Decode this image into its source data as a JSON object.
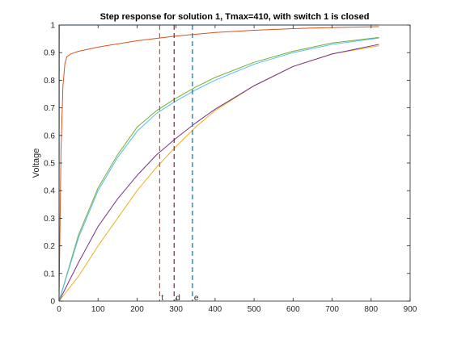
{
  "chart_data": {
    "type": "line",
    "title": "Step response for solution 1, Tmax=410, with switch 1 is closed",
    "xlabel": "",
    "ylabel": "Voltage",
    "xlim": [
      0,
      900
    ],
    "ylim": [
      0,
      1
    ],
    "xticks": [
      0,
      100,
      200,
      300,
      400,
      500,
      600,
      700,
      800,
      900
    ],
    "yticks": [
      0,
      0.1,
      0.2,
      0.3,
      0.4,
      0.5,
      0.6,
      0.7,
      0.8,
      0.9,
      1
    ],
    "grid": false,
    "series": [
      {
        "color": "#0072BD",
        "x": [
          0,
          0.5,
          820
        ],
        "y": [
          0,
          1,
          1
        ]
      },
      {
        "color": "#D95319",
        "x": [
          0,
          5,
          10,
          15,
          20,
          25,
          30,
          50,
          100,
          200,
          300,
          400,
          500,
          600,
          700,
          820
        ],
        "y": [
          0,
          0.55,
          0.78,
          0.86,
          0.885,
          0.89,
          0.895,
          0.905,
          0.92,
          0.943,
          0.96,
          0.973,
          0.981,
          0.987,
          0.991,
          0.994
        ]
      },
      {
        "color": "#EDB120",
        "x": [
          0,
          50,
          100,
          150,
          200,
          250,
          300,
          350,
          400,
          500,
          600,
          700,
          820
        ],
        "y": [
          0,
          0.09,
          0.2,
          0.3,
          0.4,
          0.485,
          0.56,
          0.63,
          0.69,
          0.78,
          0.85,
          0.895,
          0.925
        ]
      },
      {
        "color": "#7E2F8E",
        "x": [
          0,
          50,
          100,
          150,
          200,
          250,
          300,
          350,
          400,
          500,
          600,
          700,
          820
        ],
        "y": [
          0,
          0.14,
          0.27,
          0.37,
          0.455,
          0.53,
          0.59,
          0.645,
          0.695,
          0.78,
          0.85,
          0.895,
          0.93
        ]
      },
      {
        "color": "#77AC30",
        "x": [
          0,
          50,
          100,
          150,
          200,
          250,
          300,
          350,
          400,
          500,
          600,
          700,
          820
        ],
        "y": [
          0,
          0.24,
          0.41,
          0.53,
          0.63,
          0.69,
          0.735,
          0.775,
          0.81,
          0.865,
          0.905,
          0.935,
          0.955
        ]
      },
      {
        "color": "#4DBEEE",
        "x": [
          0,
          50,
          100,
          150,
          200,
          250,
          300,
          350,
          400,
          500,
          600,
          700,
          820
        ],
        "y": [
          0,
          0.23,
          0.4,
          0.52,
          0.615,
          0.68,
          0.725,
          0.765,
          0.8,
          0.858,
          0.9,
          0.93,
          0.953
        ]
      }
    ],
    "markers": [
      {
        "label": "t",
        "x": 258,
        "color": "#D95319"
      },
      {
        "label": "d",
        "x": 295,
        "color": "#A2142F"
      },
      {
        "label": "e",
        "x": 342,
        "color": "#0072BD"
      }
    ]
  }
}
